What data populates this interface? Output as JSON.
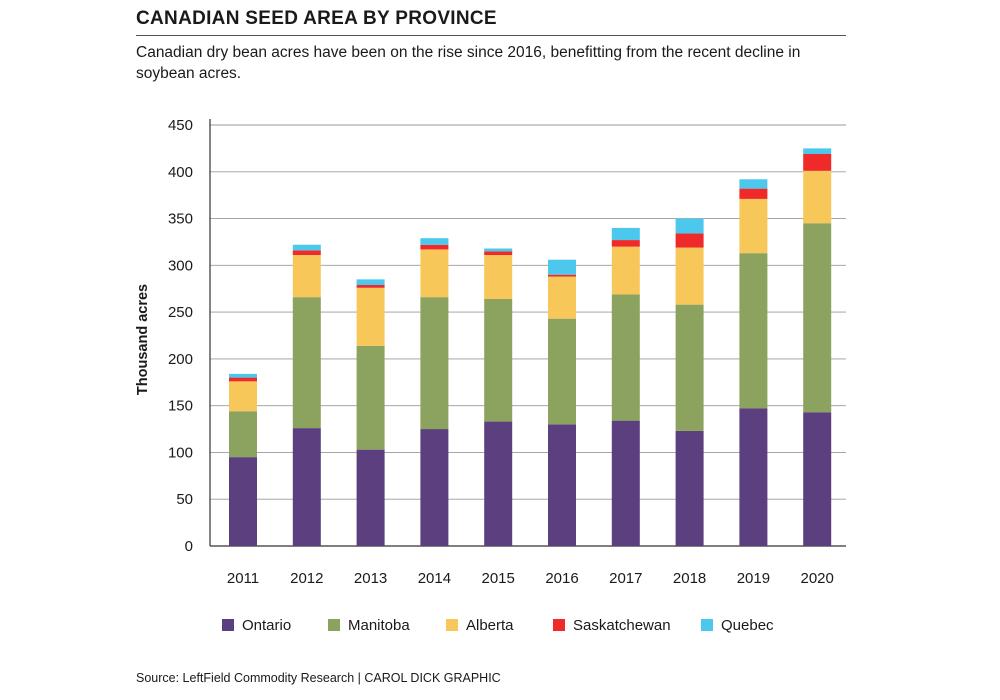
{
  "header": {
    "title": "CANADIAN SEED AREA BY PROVINCE",
    "subtitle": "Canadian dry bean acres have been on the rise since 2016, benefitting from the recent decline in soybean acres."
  },
  "footer": {
    "source": "Source: LeftField Commodity Research  |  CAROL DICK GRAPHIC"
  },
  "chart_data": {
    "type": "bar",
    "stacked": true,
    "title": "CANADIAN SEED AREA BY PROVINCE",
    "xlabel": "",
    "ylabel": "Thousand acres",
    "ylim": [
      0,
      450
    ],
    "yticks": [
      0,
      50,
      100,
      150,
      200,
      250,
      300,
      350,
      400,
      450
    ],
    "grid": true,
    "legend_position": "bottom",
    "categories": [
      "2011",
      "2012",
      "2013",
      "2014",
      "2015",
      "2016",
      "2017",
      "2018",
      "2019",
      "2020"
    ],
    "series": [
      {
        "name": "Ontario",
        "color": "#5b3f7e",
        "values": [
          95,
          126,
          103,
          125,
          133,
          130,
          134,
          123,
          147,
          143
        ]
      },
      {
        "name": "Manitoba",
        "color": "#8ba35e",
        "values": [
          49,
          140,
          111,
          141,
          131,
          113,
          135,
          135,
          166,
          202
        ]
      },
      {
        "name": "Alberta",
        "color": "#f8c75a",
        "values": [
          32,
          45,
          62,
          51,
          47,
          45,
          51,
          61,
          58,
          56
        ]
      },
      {
        "name": "Saskatchewan",
        "color": "#ee2a2a",
        "values": [
          4,
          5,
          3,
          5,
          4,
          2,
          7,
          15,
          11,
          18
        ]
      },
      {
        "name": "Quebec",
        "color": "#4bc8ec",
        "values": [
          4,
          6,
          6,
          7,
          3,
          16,
          13,
          16,
          10,
          6
        ]
      }
    ]
  }
}
